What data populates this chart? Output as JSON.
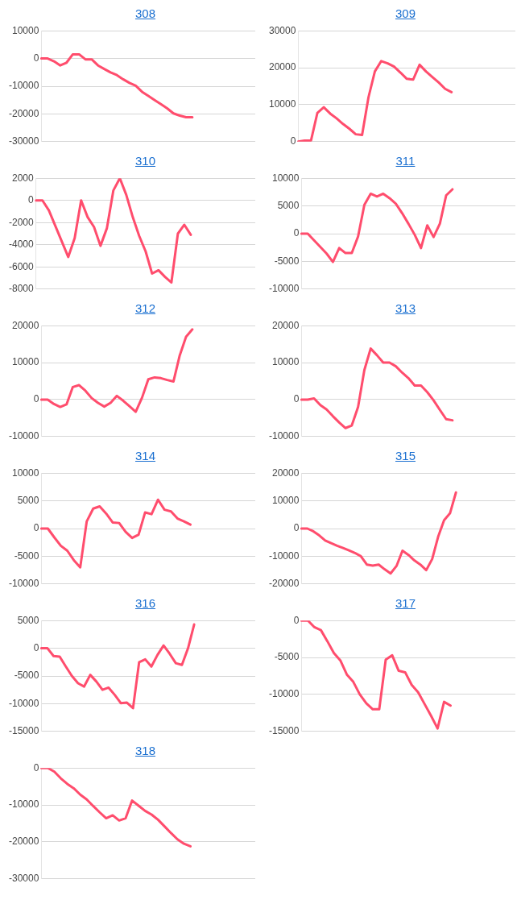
{
  "chart_data": [
    {
      "type": "line",
      "title": "308",
      "categories": [
        null,
        null,
        null,
        null,
        null,
        null,
        null,
        null,
        null,
        null,
        null,
        null,
        null,
        null,
        null,
        null,
        null,
        null,
        null,
        null,
        null,
        null,
        null,
        null,
        null,
        null,
        null,
        null,
        null,
        null,
        null,
        null,
        null,
        null,
        null
      ],
      "color": "#ff4d6d",
      "values": [
        0,
        0,
        -1000,
        -2500,
        -1500,
        1500,
        1500,
        -300,
        -300,
        -2500,
        -3800,
        -5000,
        -6000,
        -7500,
        -8800,
        -9800,
        -12000,
        -13500,
        -15000,
        -16500,
        -18000,
        -19800,
        -20600,
        -21200,
        -21200,
        null,
        null,
        null,
        null,
        null,
        null,
        null,
        null,
        null,
        null
      ],
      "ylim": [
        -30000,
        10000
      ],
      "yticks": [
        -30000,
        -20000,
        -10000,
        0,
        10000
      ],
      "grid": "y",
      "tick_labels": "y"
    },
    {
      "type": "line",
      "title": "309",
      "categories": [
        null,
        null,
        null,
        null,
        null,
        null,
        null,
        null,
        null,
        null,
        null,
        null,
        null,
        null,
        null,
        null,
        null,
        null,
        null,
        null,
        null,
        null,
        null,
        null,
        null,
        null,
        null,
        null,
        null,
        null,
        null,
        null,
        null,
        null,
        null
      ],
      "color": "#ff4d6d",
      "values": [
        0,
        300,
        300,
        7800,
        9300,
        7600,
        6300,
        4800,
        3500,
        2000,
        1800,
        12000,
        19000,
        21800,
        21200,
        20300,
        18700,
        17000,
        16800,
        20800,
        19000,
        17500,
        16000,
        14300,
        13400,
        null,
        null,
        null,
        null,
        null,
        null,
        null,
        null,
        null,
        null
      ],
      "ylim": [
        0,
        30000
      ],
      "yticks": [
        0,
        10000,
        20000,
        30000
      ],
      "grid": "y",
      "tick_labels": "y"
    },
    {
      "type": "line",
      "title": "310",
      "categories": [
        null,
        null,
        null,
        null,
        null,
        null,
        null,
        null,
        null,
        null,
        null,
        null,
        null,
        null,
        null,
        null,
        null,
        null,
        null,
        null,
        null,
        null,
        null,
        null,
        null,
        null,
        null,
        null,
        null,
        null,
        null,
        null,
        null,
        null,
        null
      ],
      "color": "#ff4d6d",
      "values": [
        0,
        0,
        -900,
        -2300,
        -3700,
        -5100,
        -3400,
        0,
        -1500,
        -2400,
        -4100,
        -2500,
        900,
        2000,
        500,
        -1500,
        -3200,
        -4600,
        -6600,
        -6300,
        -6900,
        -7400,
        -3000,
        -2200,
        -3100,
        null,
        null,
        null,
        null,
        null,
        null,
        null,
        null,
        null,
        null
      ],
      "ylim": [
        -8000,
        2000
      ],
      "yticks": [
        -8000,
        -6000,
        -4000,
        -2000,
        0,
        2000
      ],
      "grid": "y",
      "tick_labels": "y"
    },
    {
      "type": "line",
      "title": "311",
      "categories": [
        null,
        null,
        null,
        null,
        null,
        null,
        null,
        null,
        null,
        null,
        null,
        null,
        null,
        null,
        null,
        null,
        null,
        null,
        null,
        null,
        null,
        null,
        null,
        null,
        null,
        null,
        null,
        null,
        null,
        null,
        null,
        null,
        null,
        null,
        null
      ],
      "color": "#ff4d6d",
      "values": [
        0,
        0,
        -1200,
        -2400,
        -3600,
        -5100,
        -2600,
        -3500,
        -3500,
        -500,
        5200,
        7200,
        6700,
        7200,
        6400,
        5400,
        3700,
        1800,
        -200,
        -2600,
        1500,
        -600,
        1800,
        6900,
        8000,
        null,
        null,
        null,
        null,
        null,
        null,
        null,
        null,
        null,
        null
      ],
      "ylim": [
        -10000,
        10000
      ],
      "yticks": [
        -10000,
        -5000,
        0,
        5000,
        10000
      ],
      "grid": "y",
      "tick_labels": "y"
    },
    {
      "type": "line",
      "title": "312",
      "categories": [
        null,
        null,
        null,
        null,
        null,
        null,
        null,
        null,
        null,
        null,
        null,
        null,
        null,
        null,
        null,
        null,
        null,
        null,
        null,
        null,
        null,
        null,
        null,
        null,
        null,
        null,
        null,
        null,
        null,
        null,
        null,
        null,
        null,
        null,
        null
      ],
      "color": "#ff4d6d",
      "values": [
        0,
        0,
        -1200,
        -2000,
        -1300,
        3400,
        3900,
        2400,
        400,
        -900,
        -1900,
        -900,
        1000,
        -300,
        -1800,
        -3300,
        500,
        5500,
        6000,
        5800,
        5300,
        4900,
        12000,
        17000,
        19000,
        null,
        null,
        null,
        null,
        null,
        null,
        null,
        null,
        null,
        null
      ],
      "ylim": [
        -10000,
        20000
      ],
      "yticks": [
        -10000,
        0,
        10000,
        20000
      ],
      "grid": "y",
      "tick_labels": "y"
    },
    {
      "type": "line",
      "title": "313",
      "categories": [
        null,
        null,
        null,
        null,
        null,
        null,
        null,
        null,
        null,
        null,
        null,
        null,
        null,
        null,
        null,
        null,
        null,
        null,
        null,
        null,
        null,
        null,
        null,
        null,
        null,
        null,
        null,
        null,
        null,
        null,
        null,
        null,
        null,
        null,
        null
      ],
      "color": "#ff4d6d",
      "values": [
        0,
        0,
        300,
        -1500,
        -2700,
        -4500,
        -6200,
        -7700,
        -7000,
        -2000,
        8000,
        13800,
        12000,
        10000,
        10000,
        9000,
        7300,
        5800,
        3800,
        3800,
        2000,
        -200,
        -2800,
        -5300,
        -5600,
        null,
        null,
        null,
        null,
        null,
        null,
        null,
        null,
        null,
        null
      ],
      "ylim": [
        -10000,
        20000
      ],
      "yticks": [
        -10000,
        0,
        10000,
        20000
      ],
      "grid": "y",
      "tick_labels": "y"
    },
    {
      "type": "line",
      "title": "314",
      "categories": [
        null,
        null,
        null,
        null,
        null,
        null,
        null,
        null,
        null,
        null,
        null,
        null,
        null,
        null,
        null,
        null,
        null,
        null,
        null,
        null,
        null,
        null,
        null,
        null,
        null,
        null,
        null,
        null,
        null,
        null,
        null,
        null,
        null,
        null
      ],
      "color": "#ff4d6d",
      "values": [
        0,
        0,
        -1600,
        -3100,
        -4000,
        -5700,
        -7000,
        1300,
        3600,
        4000,
        2700,
        1100,
        1000,
        -600,
        -1700,
        -1100,
        2900,
        2600,
        5200,
        3400,
        3100,
        1800,
        1300,
        700,
        null,
        null,
        null,
        null,
        null,
        null,
        null,
        null,
        null,
        null
      ],
      "ylim": [
        -10000,
        10000
      ],
      "yticks": [
        -10000,
        -5000,
        0,
        5000,
        10000
      ],
      "grid": "y",
      "tick_labels": "y"
    },
    {
      "type": "line",
      "title": "315",
      "categories": [
        null,
        null,
        null,
        null,
        null,
        null,
        null,
        null,
        null,
        null,
        null,
        null,
        null,
        null,
        null,
        null,
        null,
        null,
        null,
        null,
        null,
        null,
        null,
        null,
        null,
        null,
        null,
        null,
        null,
        null,
        null,
        null,
        null,
        null,
        null,
        null,
        null
      ],
      "color": "#ff4d6d",
      "values": [
        0,
        0,
        -1000,
        -2500,
        -4300,
        -5300,
        -6200,
        -7000,
        -7900,
        -8800,
        -10000,
        -13000,
        -13400,
        -13000,
        -14700,
        -16200,
        -13500,
        -8000,
        -9500,
        -11500,
        -13000,
        -15000,
        -11000,
        -3000,
        3000,
        5500,
        13000,
        null,
        null,
        null,
        null,
        null,
        null,
        null,
        null,
        null,
        null
      ],
      "ylim": [
        -20000,
        20000
      ],
      "yticks": [
        -20000,
        -10000,
        0,
        10000,
        20000
      ],
      "grid": "y",
      "tick_labels": "y"
    },
    {
      "type": "line",
      "title": "316",
      "categories": [
        null,
        null,
        null,
        null,
        null,
        null,
        null,
        null,
        null,
        null,
        null,
        null,
        null,
        null,
        null,
        null,
        null,
        null,
        null,
        null,
        null,
        null,
        null,
        null,
        null,
        null,
        null,
        null,
        null,
        null,
        null,
        null,
        null,
        null,
        null,
        null
      ],
      "color": "#ff4d6d",
      "values": [
        0,
        0,
        -1400,
        -1500,
        -3300,
        -5000,
        -6300,
        -6900,
        -4800,
        -6000,
        -7500,
        -7100,
        -8400,
        -9900,
        -9800,
        -10800,
        -2500,
        -2000,
        -3300,
        -1200,
        500,
        -1000,
        -2700,
        -3000,
        0,
        4300,
        null,
        null,
        null,
        null,
        null,
        null,
        null,
        null,
        null,
        null
      ],
      "ylim": [
        -15000,
        5000
      ],
      "yticks": [
        -15000,
        -10000,
        -5000,
        0,
        5000
      ],
      "grid": "y",
      "tick_labels": "y"
    },
    {
      "type": "line",
      "title": "317",
      "categories": [
        null,
        null,
        null,
        null,
        null,
        null,
        null,
        null,
        null,
        null,
        null,
        null,
        null,
        null,
        null,
        null,
        null,
        null,
        null,
        null,
        null,
        null,
        null,
        null,
        null,
        null,
        null,
        null,
        null,
        null,
        null,
        null,
        null,
        null
      ],
      "color": "#ff4d6d",
      "values": [
        0,
        0,
        -900,
        -1300,
        -2800,
        -4400,
        -5400,
        -7300,
        -8300,
        -10000,
        -11200,
        -12000,
        -12000,
        -5300,
        -4700,
        -6800,
        -7000,
        -8700,
        -9700,
        -11300,
        -12900,
        -14600,
        -11000,
        -11500,
        null,
        null,
        null,
        null,
        null,
        null,
        null,
        null,
        null,
        null
      ],
      "ylim": [
        -15000,
        0
      ],
      "yticks": [
        -15000,
        -10000,
        -5000,
        0
      ],
      "grid": "y",
      "tick_labels": "y"
    },
    {
      "type": "line",
      "title": "318",
      "categories": [
        null,
        null,
        null,
        null,
        null,
        null,
        null,
        null,
        null,
        null,
        null,
        null,
        null,
        null,
        null,
        null,
        null,
        null,
        null,
        null,
        null,
        null,
        null,
        null,
        null,
        null,
        null,
        null,
        null,
        null,
        null,
        null,
        null,
        null
      ],
      "color": "#ff4d6d",
      "values": [
        0,
        0,
        -1000,
        -2800,
        -4300,
        -5500,
        -7200,
        -8500,
        -10300,
        -12000,
        -13600,
        -12800,
        -14200,
        -13600,
        -8800,
        -10200,
        -11600,
        -12600,
        -14000,
        -15800,
        -17600,
        -19300,
        -20500,
        -21200,
        null,
        null,
        null,
        null,
        null,
        null,
        null,
        null,
        null,
        null
      ],
      "ylim": [
        -30000,
        0
      ],
      "yticks": [
        -30000,
        -20000,
        -10000,
        0
      ],
      "grid": "y",
      "tick_labels": "y"
    }
  ]
}
